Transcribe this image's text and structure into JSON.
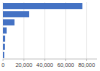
{
  "chart_data": {
    "type": "bar",
    "orientation": "horizontal",
    "categories": [
      null,
      null,
      null,
      null,
      null,
      null,
      null
    ],
    "values": [
      76000,
      25000,
      11000,
      3500,
      2000,
      1800,
      1200
    ],
    "color": "#4472c4",
    "xlim": [
      0,
      90000
    ],
    "xticks": [
      0,
      {
        "value": 20000,
        "label": "20,000"
      },
      {
        "value": 40000,
        "label": "40,000"
      },
      {
        "value": 60000,
        "label": "60,000"
      },
      {
        "value": 80000,
        "label": "80,000"
      }
    ],
    "grid": true
  }
}
